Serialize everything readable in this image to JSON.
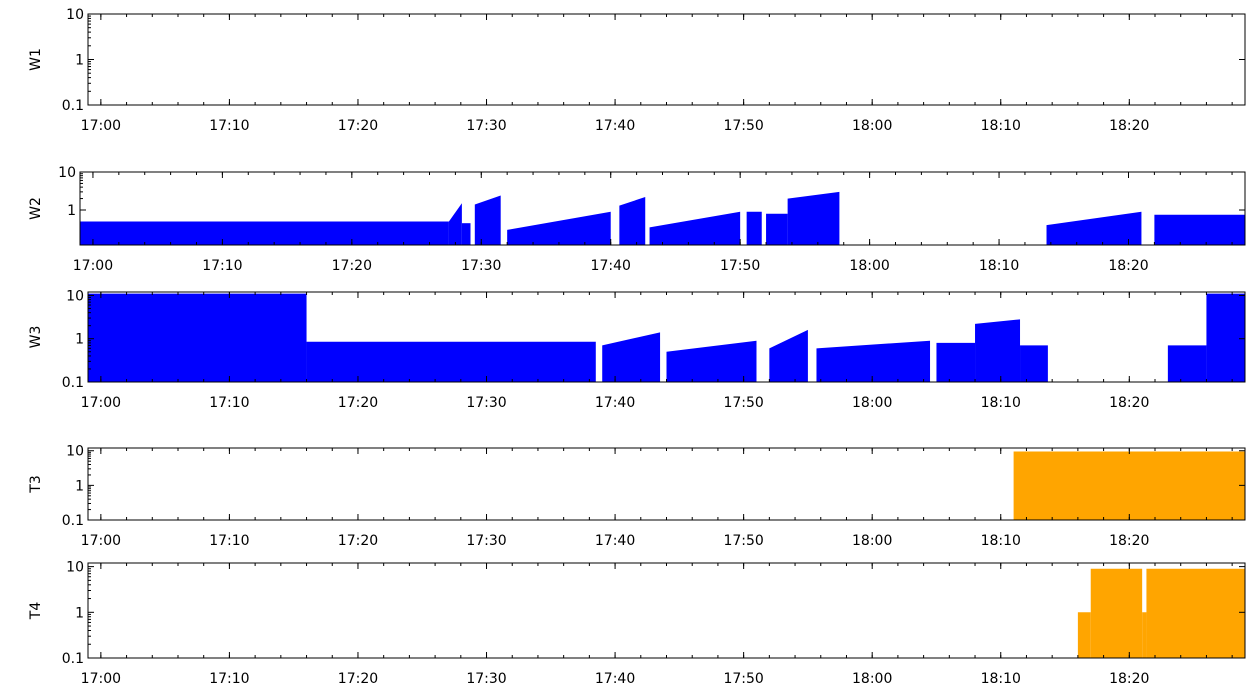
{
  "chart_data": [
    {
      "type": "area",
      "ylabel": "W1",
      "xlim": [
        "16:59",
        "18:29"
      ],
      "ylim": [
        0.1,
        10
      ],
      "yscale": "log",
      "yticks": [
        "0.1",
        "1",
        "10"
      ],
      "xticks": [
        "17:00",
        "17:10",
        "17:20",
        "17:30",
        "17:40",
        "17:50",
        "18:00",
        "18:10",
        "18:20"
      ],
      "grid": false,
      "legend": "none",
      "color": "#0000ff",
      "segments": []
    },
    {
      "type": "area",
      "ylabel": "W2",
      "xlim": [
        "16:59",
        "18:29"
      ],
      "ylim": [
        0.12,
        10
      ],
      "yscale": "log",
      "yticks": [
        "1",
        "10"
      ],
      "xticks": [
        "17:00",
        "17:10",
        "17:20",
        "17:30",
        "17:40",
        "17:50",
        "18:00",
        "18:10",
        "18:20"
      ],
      "grid": false,
      "legend": "none",
      "color": "#0000ff",
      "segments": [
        {
          "x": [
            "16:59",
            "17:27:30"
          ],
          "y": [
            0.5,
            0.5
          ]
        },
        {
          "x": [
            "17:27:30",
            "17:28:30"
          ],
          "y": [
            0.5,
            1.5
          ]
        },
        {
          "x": [
            "17:28:30",
            "17:29:10"
          ],
          "y": [
            0.45,
            0.45
          ]
        },
        {
          "x": [
            "17:29:30",
            "17:31:30"
          ],
          "y": [
            1.4,
            2.4
          ]
        },
        {
          "x": [
            "17:32",
            "17:40"
          ],
          "y": [
            0.3,
            0.9
          ]
        },
        {
          "x": [
            "17:40:40",
            "17:42:40"
          ],
          "y": [
            1.3,
            2.2
          ]
        },
        {
          "x": [
            "17:43",
            "17:50"
          ],
          "y": [
            0.35,
            0.9
          ]
        },
        {
          "x": [
            "17:50:30",
            "17:51:40"
          ],
          "y": [
            0.9,
            0.9
          ]
        },
        {
          "x": [
            "17:52",
            "17:53:40"
          ],
          "y": [
            0.8,
            0.8
          ]
        },
        {
          "x": [
            "17:53:40",
            "17:57:40"
          ],
          "y": [
            2.0,
            3.0
          ]
        },
        {
          "x": [
            "18:13:40",
            "18:21"
          ],
          "y": [
            0.4,
            0.9
          ]
        },
        {
          "x": [
            "18:22",
            "18:29"
          ],
          "y": [
            0.75,
            0.75
          ]
        }
      ]
    },
    {
      "type": "area",
      "ylabel": "W3",
      "xlim": [
        "16:59",
        "18:29"
      ],
      "ylim": [
        0.1,
        12
      ],
      "yscale": "log",
      "yticks": [
        "0.1",
        "1",
        "10"
      ],
      "xticks": [
        "17:00",
        "17:10",
        "17:20",
        "17:30",
        "17:40",
        "17:50",
        "18:00",
        "18:10",
        "18:20"
      ],
      "grid": false,
      "legend": "none",
      "color": "#0000ff",
      "segments": [
        {
          "x": [
            "16:59",
            "17:16"
          ],
          "y": [
            11,
            11
          ]
        },
        {
          "x": [
            "17:16",
            "17:38:30"
          ],
          "y": [
            0.85,
            0.85
          ]
        },
        {
          "x": [
            "17:39",
            "17:43:30"
          ],
          "y": [
            0.7,
            1.4
          ]
        },
        {
          "x": [
            "17:44",
            "17:51"
          ],
          "y": [
            0.5,
            0.9
          ]
        },
        {
          "x": [
            "17:52",
            "17:55"
          ],
          "y": [
            0.6,
            1.6
          ]
        },
        {
          "x": [
            "17:55:40",
            "18:04:30"
          ],
          "y": [
            0.6,
            0.9
          ]
        },
        {
          "x": [
            "18:05",
            "18:08"
          ],
          "y": [
            0.8,
            0.8
          ]
        },
        {
          "x": [
            "18:08",
            "18:11:30"
          ],
          "y": [
            2.2,
            2.8
          ]
        },
        {
          "x": [
            "18:11:30",
            "18:13:40"
          ],
          "y": [
            0.7,
            0.7
          ]
        },
        {
          "x": [
            "18:23",
            "18:26"
          ],
          "y": [
            0.7,
            0.7
          ]
        },
        {
          "x": [
            "18:26",
            "18:29"
          ],
          "y": [
            11,
            11
          ]
        }
      ]
    },
    {
      "type": "area",
      "ylabel": "T3",
      "xlim": [
        "16:59",
        "18:29"
      ],
      "ylim": [
        0.1,
        12
      ],
      "yscale": "log",
      "yticks": [
        "0.1",
        "1",
        "10"
      ],
      "xticks": [
        "17:00",
        "17:10",
        "17:20",
        "17:30",
        "17:40",
        "17:50",
        "18:00",
        "18:10",
        "18:20"
      ],
      "grid": false,
      "legend": "none",
      "color": "#ffa500",
      "segments": [
        {
          "x": [
            "18:11",
            "18:29"
          ],
          "y": [
            9.5,
            9.5
          ]
        }
      ]
    },
    {
      "type": "area",
      "ylabel": "T4",
      "xlim": [
        "16:59",
        "18:29"
      ],
      "ylim": [
        0.1,
        12
      ],
      "yscale": "log",
      "yticks": [
        "0.1",
        "1",
        "10"
      ],
      "xticks": [
        "17:00",
        "17:10",
        "17:20",
        "17:30",
        "17:40",
        "17:50",
        "18:00",
        "18:10",
        "18:20"
      ],
      "grid": false,
      "legend": "none",
      "color": "#ffa500",
      "segments": [
        {
          "x": [
            "18:16",
            "18:17"
          ],
          "y": [
            1.0,
            1.0
          ]
        },
        {
          "x": [
            "18:17",
            "18:21"
          ],
          "y": [
            9.0,
            9.0
          ]
        },
        {
          "x": [
            "18:21",
            "18:21:20"
          ],
          "y": [
            1.0,
            1.0
          ]
        },
        {
          "x": [
            "18:21:20",
            "18:29"
          ],
          "y": [
            9.0,
            9.0
          ]
        }
      ]
    }
  ]
}
